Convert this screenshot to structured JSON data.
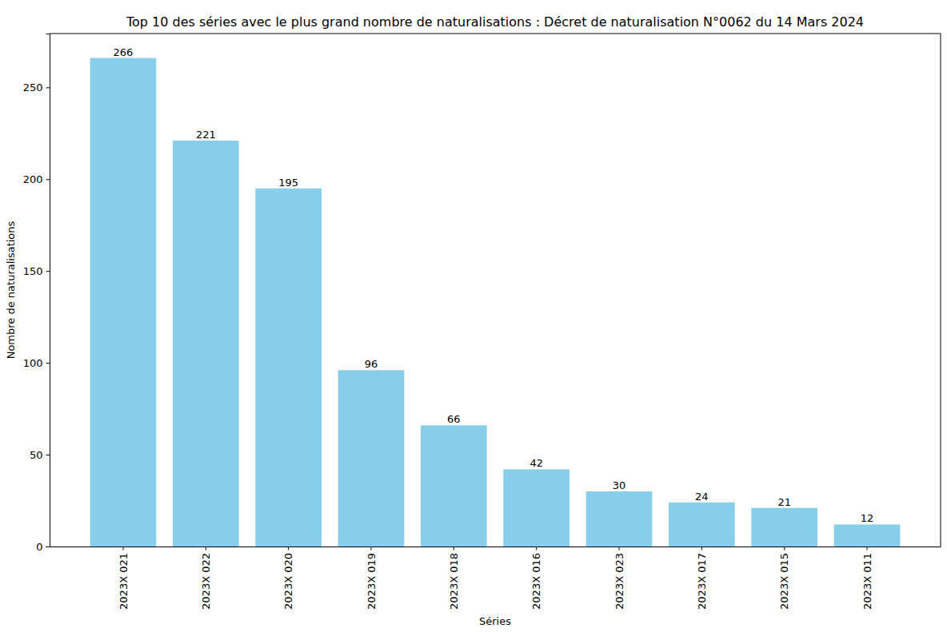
{
  "chart_data": {
    "type": "bar",
    "title": "Top 10 des séries avec le plus grand nombre de naturalisations : Décret de naturalisation N°0062 du 14 Mars 2024",
    "x_label": "Séries",
    "y_label": "Nombre de naturalisations",
    "categories": [
      "2023X 021",
      "2023X 022",
      "2023X 020",
      "2023X 019",
      "2023X 018",
      "2023X 016",
      "2023X 023",
      "2023X 017",
      "2023X 015",
      "2023X 011"
    ],
    "values": [
      266,
      221,
      195,
      96,
      66,
      42,
      30,
      24,
      21,
      12
    ],
    "color": "#87ceeb",
    "ylim": [
      0,
      279.3
    ],
    "yticks": [
      0,
      50,
      100,
      150,
      200,
      250
    ],
    "grid": false,
    "data_labels": true
  }
}
